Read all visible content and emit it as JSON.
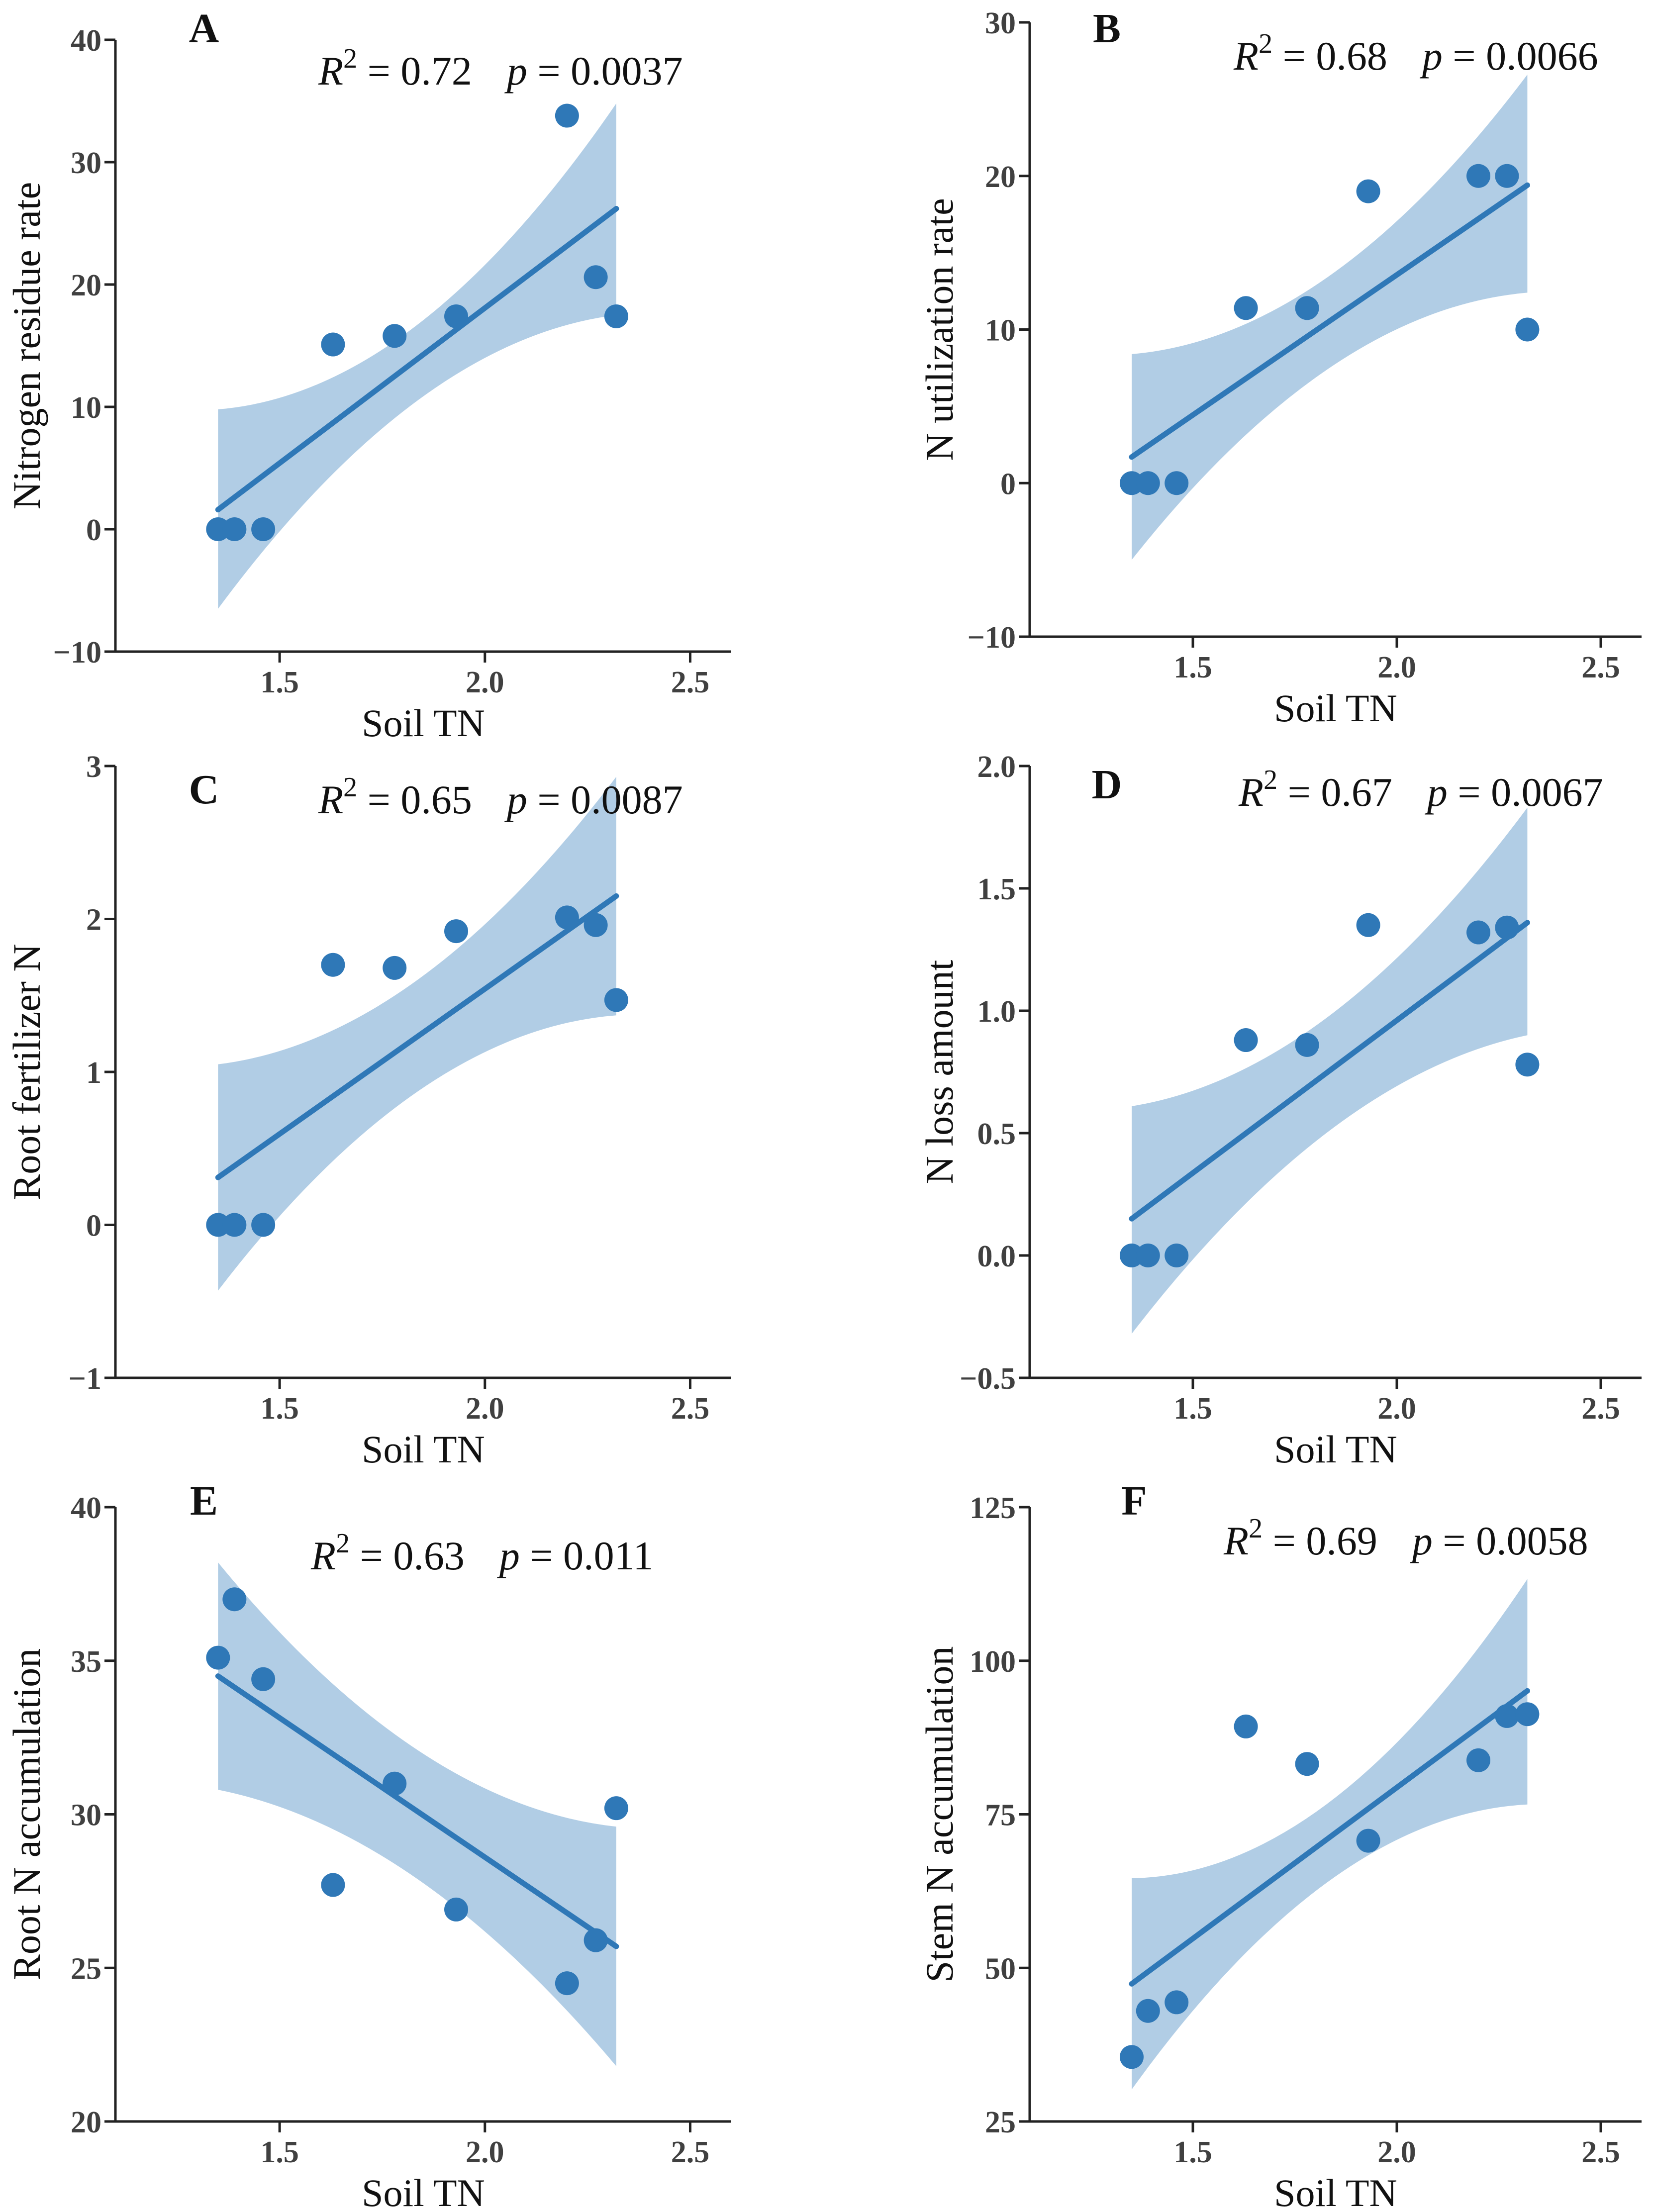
{
  "figure": {
    "colors": {
      "point": "#2f78b7",
      "line": "#2f78b7",
      "band": "#a9c8e2",
      "axis": "#222222"
    }
  },
  "chart_data": [
    {
      "type": "scatter",
      "panel": "A",
      "xlabel": "Soil TN",
      "ylabel": "Nitrogen residue rate",
      "xlim": [
        1.1,
        2.6
      ],
      "ylim": [
        -10,
        40
      ],
      "xticks": [
        "1.5",
        "2.0",
        "2.5"
      ],
      "xtick_values": [
        1.5,
        2.0,
        2.5
      ],
      "yticks": [
        "−10",
        "0",
        "10",
        "20",
        "30",
        "40"
      ],
      "ytick_values": [
        -10,
        0,
        10,
        20,
        30,
        40
      ],
      "stats": {
        "r2_label": "R",
        "r2_sup": "2",
        "r2_value": " = 0.72",
        "p_label": "p",
        "p_value": " = 0.0037"
      },
      "points": [
        [
          1.35,
          0
        ],
        [
          1.39,
          0
        ],
        [
          1.46,
          0
        ],
        [
          1.63,
          15.1
        ],
        [
          1.78,
          15.8
        ],
        [
          1.93,
          17.4
        ],
        [
          2.2,
          33.8
        ],
        [
          2.27,
          20.6
        ],
        [
          2.32,
          17.4
        ]
      ],
      "fit": [
        [
          1.35,
          1.6
        ],
        [
          2.32,
          26.2
        ]
      ],
      "band": {
        "x": [
          1.35,
          1.835,
          2.32
        ],
        "upper": [
          9.8,
          16.7,
          34.8
        ],
        "lower": [
          -6.5,
          10.5,
          17.5
        ]
      }
    },
    {
      "type": "scatter",
      "panel": "B",
      "xlabel": "Soil TN",
      "ylabel": "N utilization rate",
      "xlim": [
        1.1,
        2.6
      ],
      "ylim": [
        -10,
        30
      ],
      "xticks": [
        "1.5",
        "2.0",
        "2.5"
      ],
      "xtick_values": [
        1.5,
        2.0,
        2.5
      ],
      "yticks": [
        "−10",
        "0",
        "10",
        "20",
        "30"
      ],
      "ytick_values": [
        -10,
        0,
        10,
        20,
        30
      ],
      "stats": {
        "r2_label": "R",
        "r2_sup": "2",
        "r2_value": " = 0.68",
        "p_label": "p",
        "p_value": " = 0.0066"
      },
      "points": [
        [
          1.35,
          0
        ],
        [
          1.39,
          0
        ],
        [
          1.46,
          0
        ],
        [
          1.63,
          11.4
        ],
        [
          1.78,
          11.4
        ],
        [
          1.93,
          19.0
        ],
        [
          2.2,
          20.0
        ],
        [
          2.27,
          20.0
        ],
        [
          2.32,
          10.0
        ]
      ],
      "fit": [
        [
          1.35,
          1.7
        ],
        [
          2.32,
          19.4
        ]
      ],
      "band": {
        "x": [
          1.35,
          1.835,
          2.32
        ],
        "upper": [
          8.4,
          13.5,
          26.6
        ],
        "lower": [
          -5.0,
          7.5,
          12.4
        ]
      }
    },
    {
      "type": "scatter",
      "panel": "C",
      "xlabel": "Soil TN",
      "ylabel": "Root fertilizer N",
      "xlim": [
        1.1,
        2.6
      ],
      "ylim": [
        -1,
        3
      ],
      "xticks": [
        "1.5",
        "2.0",
        "2.5"
      ],
      "xtick_values": [
        1.5,
        2.0,
        2.5
      ],
      "yticks": [
        "−1",
        "0",
        "1",
        "2",
        "3"
      ],
      "ytick_values": [
        -1,
        0,
        1,
        2,
        3
      ],
      "stats": {
        "r2_label": "R",
        "r2_sup": "2",
        "r2_value": " = 0.65",
        "p_label": "p",
        "p_value": " = 0.0087"
      },
      "points": [
        [
          1.35,
          0
        ],
        [
          1.39,
          0
        ],
        [
          1.46,
          0
        ],
        [
          1.63,
          1.7
        ],
        [
          1.78,
          1.68
        ],
        [
          1.93,
          1.92
        ],
        [
          2.2,
          2.01
        ],
        [
          2.27,
          1.96
        ],
        [
          2.32,
          1.47
        ]
      ],
      "fit": [
        [
          1.35,
          0.31
        ],
        [
          2.32,
          2.15
        ]
      ],
      "band": {
        "x": [
          1.35,
          1.835,
          2.32
        ],
        "upper": [
          1.05,
          1.6,
          2.93
        ],
        "lower": [
          -0.43,
          0.87,
          1.37
        ]
      }
    },
    {
      "type": "scatter",
      "panel": "D",
      "xlabel": "Soil TN",
      "ylabel": "N loss amount",
      "xlim": [
        1.1,
        2.6
      ],
      "ylim": [
        -0.5,
        2.0
      ],
      "xticks": [
        "1.5",
        "2.0",
        "2.5"
      ],
      "xtick_values": [
        1.5,
        2.0,
        2.5
      ],
      "yticks": [
        "−0.5",
        "0.0",
        "0.5",
        "1.0",
        "1.5",
        "2.0"
      ],
      "ytick_values": [
        -0.5,
        0.0,
        0.5,
        1.0,
        1.5,
        2.0
      ],
      "stats": {
        "r2_label": "R",
        "r2_sup": "2",
        "r2_value": " = 0.67",
        "p_label": "p",
        "p_value": " = 0.0067"
      },
      "points": [
        [
          1.35,
          0
        ],
        [
          1.39,
          0
        ],
        [
          1.46,
          0
        ],
        [
          1.63,
          0.88
        ],
        [
          1.78,
          0.86
        ],
        [
          1.93,
          1.35
        ],
        [
          2.2,
          1.32
        ],
        [
          2.27,
          1.34
        ],
        [
          2.32,
          0.78
        ]
      ],
      "fit": [
        [
          1.35,
          0.15
        ],
        [
          2.32,
          1.36
        ]
      ],
      "band": {
        "x": [
          1.35,
          1.835,
          2.32
        ],
        "upper": [
          0.61,
          0.98,
          1.83
        ],
        "lower": [
          -0.32,
          0.51,
          0.9
        ]
      }
    },
    {
      "type": "scatter",
      "panel": "E",
      "xlabel": "Soil TN",
      "ylabel": "Root N accumulation",
      "xlim": [
        1.1,
        2.6
      ],
      "ylim": [
        20,
        40
      ],
      "xticks": [
        "1.5",
        "2.0",
        "2.5"
      ],
      "xtick_values": [
        1.5,
        2.0,
        2.5
      ],
      "yticks": [
        "20",
        "25",
        "30",
        "35",
        "40"
      ],
      "ytick_values": [
        20,
        25,
        30,
        35,
        40
      ],
      "stats": {
        "r2_label": "R",
        "r2_sup": "2",
        "r2_value": " = 0.63",
        "p_label": "p",
        "p_value": " = 0.011"
      },
      "points": [
        [
          1.35,
          35.1
        ],
        [
          1.39,
          37.0
        ],
        [
          1.46,
          34.4
        ],
        [
          1.63,
          27.7
        ],
        [
          1.78,
          31.0
        ],
        [
          1.93,
          26.9
        ],
        [
          2.2,
          24.5
        ],
        [
          2.27,
          25.9
        ],
        [
          2.32,
          30.2
        ]
      ],
      "fit": [
        [
          1.35,
          34.5
        ],
        [
          2.32,
          25.7
        ]
      ],
      "band": {
        "x": [
          1.35,
          1.835,
          2.32
        ],
        "upper": [
          38.2,
          32.1,
          29.6
        ],
        "lower": [
          30.8,
          27.9,
          21.8
        ]
      }
    },
    {
      "type": "scatter",
      "panel": "F",
      "xlabel": "Soil TN",
      "ylabel": "Stem N accumulation",
      "xlim": [
        1.1,
        2.6
      ],
      "ylim": [
        25,
        125
      ],
      "xticks": [
        "1.5",
        "2.0",
        "2.5"
      ],
      "xtick_values": [
        1.5,
        2.0,
        2.5
      ],
      "yticks": [
        "25",
        "50",
        "75",
        "100",
        "125"
      ],
      "ytick_values": [
        25,
        50,
        75,
        100,
        125
      ],
      "stats": {
        "r2_label": "R",
        "r2_sup": "2",
        "r2_value": " = 0.69",
        "p_label": "p",
        "p_value": " = 0.0058"
      },
      "points": [
        [
          1.35,
          35.5
        ],
        [
          1.39,
          43.0
        ],
        [
          1.46,
          44.4
        ],
        [
          1.63,
          89.3
        ],
        [
          1.78,
          83.2
        ],
        [
          1.93,
          70.7
        ],
        [
          2.2,
          83.8
        ],
        [
          2.27,
          91.0
        ],
        [
          2.32,
          91.3
        ]
      ],
      "fit": [
        [
          1.35,
          47.4
        ],
        [
          2.32,
          95.1
        ]
      ],
      "band": {
        "x": [
          1.35,
          1.835,
          2.32
        ],
        "upper": [
          64.6,
          77.0,
          113.3
        ],
        "lower": [
          30.2,
          64.2,
          76.6
        ]
      }
    }
  ]
}
